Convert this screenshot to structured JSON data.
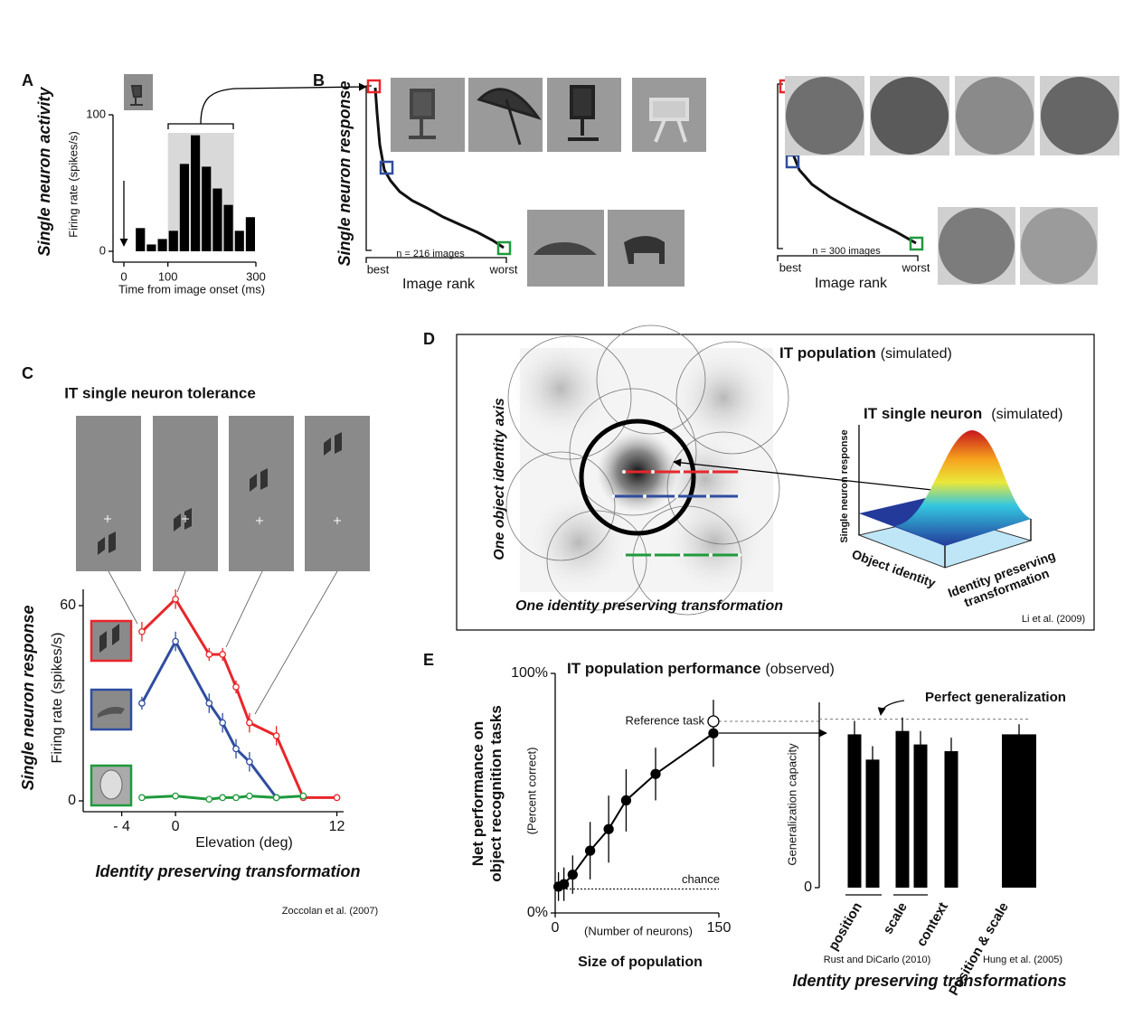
{
  "panel_labels": [
    "A",
    "B",
    "C",
    "D",
    "E"
  ],
  "panel_b": {
    "ylabel": "Single neuron response",
    "left": {
      "count": "n = 216 images",
      "best": "best",
      "worst": "worst",
      "axis": "Image rank"
    },
    "right": {
      "count": "n = 300 images",
      "best": "best",
      "worst": "worst",
      "axis": "Image rank"
    }
  },
  "panel_d": {
    "title": "IT population",
    "title_note": "(simulated)",
    "yaxis": "One object identity axis",
    "xaxis": "One identity preserving transformation",
    "inset_title": "IT single neuron",
    "inset_note": "(simulated)",
    "inset_z": "Single neuron response",
    "inset_x": "Object identity",
    "inset_y": [
      "Identity preserving",
      "transformation"
    ],
    "citation": "Li et al. (2009)"
  },
  "chart_data": [
    {
      "type": "histogram",
      "side_label": "Single neuron activity",
      "ylabel": "Firing rate (spikes/s)",
      "xlabel": "Time from image onset (ms)",
      "bins": [
        25,
        50,
        75,
        100,
        125,
        150,
        175,
        200,
        225,
        250,
        275,
        300
      ],
      "counts": [
        17,
        5,
        9,
        15,
        64,
        85,
        62,
        46,
        34,
        15,
        25
      ],
      "color": "#000000",
      "window": [
        100,
        250
      ],
      "xlim": [
        0,
        300
      ],
      "xticks": [
        0,
        100,
        300
      ],
      "ylim": [
        0,
        100
      ],
      "yticks": [
        0,
        100
      ]
    },
    {
      "type": "line",
      "title": "IT single neuron tolerance",
      "side_label": "Single neuron response",
      "ylabel": "Firing rate (spikes/s)",
      "xlabel": "Elevation (deg)",
      "axis_title": "Identity preserving transformation",
      "citation": "Zoccolan et al. (2007)",
      "marker": "open",
      "x": [
        -2.5,
        0,
        2.5,
        3.5,
        4.5,
        5.5,
        7.5,
        9.5,
        12
      ],
      "series": [
        {
          "color": "#e8262b",
          "values": [
            52,
            62,
            45,
            45,
            35,
            24,
            20,
            1,
            1
          ],
          "errors": [
            3,
            3,
            2,
            2,
            2,
            3,
            3,
            1,
            1
          ]
        },
        {
          "color": "#2f4da0",
          "values": [
            30,
            49,
            30,
            24,
            16,
            12,
            1,
            null,
            null
          ],
          "errors": [
            2,
            3,
            3,
            3,
            3,
            3,
            1,
            null,
            null
          ]
        },
        {
          "color": "#1f9a3c",
          "values": [
            1,
            1.5,
            0.5,
            1,
            1,
            1.5,
            1,
            1.5,
            null
          ],
          "errors": [
            1,
            1,
            1,
            1,
            1,
            1,
            1,
            1,
            null
          ]
        }
      ],
      "xlim": [
        -7,
        12.5
      ],
      "xticks": [
        {
          "value": -4,
          "label": "- 4"
        },
        0,
        12
      ],
      "ylim": [
        0,
        65
      ],
      "yticks": [
        0,
        60
      ]
    },
    {
      "type": "line",
      "title": "IT population performance",
      "title_note": "(observed)",
      "ylabel": [
        "Net performance on",
        "object recognition tasks"
      ],
      "ylabel_note": "(Percent correct)",
      "xlabel": "Size of population",
      "xlabel_note": "(Number of neurons)",
      "marker": "filled",
      "x": [
        3,
        8,
        16,
        32,
        49,
        65,
        92,
        145
      ],
      "series": [
        {
          "color": "#000000",
          "values": [
            11,
            12,
            16,
            26,
            35,
            47,
            58,
            75
          ],
          "errors": [
            6,
            7,
            8,
            12,
            14,
            13,
            11,
            14
          ]
        }
      ],
      "reference": {
        "label": "Reference task",
        "x": 145,
        "value": 80
      },
      "chance": {
        "label": "chance",
        "value": 10
      },
      "xlim": [
        0,
        150
      ],
      "xticks": [
        0,
        150
      ],
      "ylim": [
        0,
        100
      ],
      "yticks": [
        {
          "value": 0,
          "label": "0%"
        },
        {
          "value": 100,
          "label": "100%"
        }
      ]
    },
    {
      "type": "bar",
      "ylabel": "Generalization capacity",
      "xlabel": "Identity preserving transformations",
      "categories": [
        "position",
        null,
        "scale",
        null,
        "context",
        "Position & scale"
      ],
      "values": [
        0.91,
        0.76,
        0.93,
        0.85,
        0.81,
        0.91
      ],
      "errors": [
        0.08,
        0.08,
        0.08,
        0.08,
        0.08,
        0.06
      ],
      "color": "#000000",
      "perfect": {
        "label": "Perfect generalization",
        "value": 1
      },
      "sources": [
        "Rust and DiCarlo (2010)",
        "Hung et al. (2005)"
      ],
      "ylim": [
        0,
        1.1
      ],
      "yticks": [
        0
      ]
    }
  ]
}
